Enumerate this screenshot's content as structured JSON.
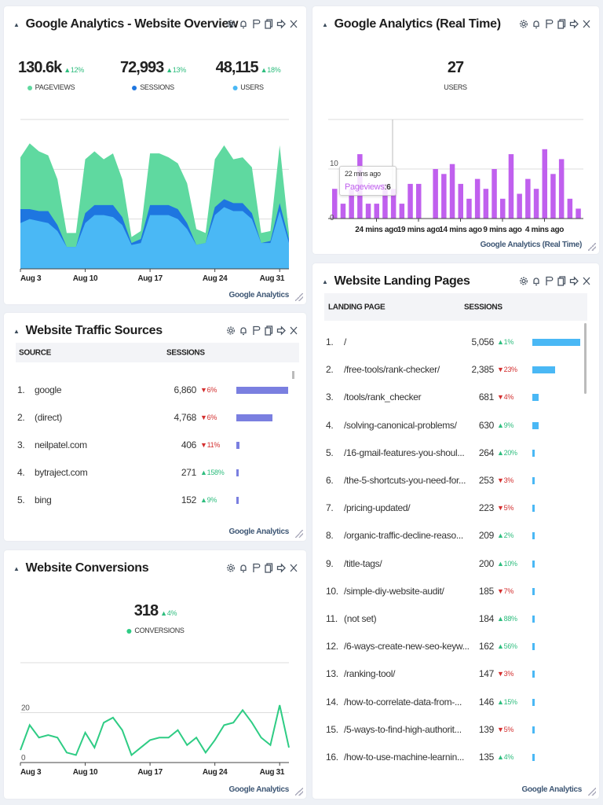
{
  "colors": {
    "pageviews": "#5fd9a0",
    "sessions": "#1e76e0",
    "users": "#4ab8f5",
    "realtime": "#c060ee",
    "conversions": "#2ecc84",
    "traffic_bar": "#7a7fe0",
    "landing_bar": "#4ab8f5",
    "up": "#2ebd7e",
    "down": "#d32f2f"
  },
  "toolbar_icons": [
    "gear-icon",
    "bell-icon",
    "flag-icon",
    "copy-icon",
    "share-icon",
    "close-icon"
  ],
  "overview": {
    "title": "Google Analytics - Website Overview",
    "footer": "Google Analytics",
    "stats": [
      {
        "value": "130.6k",
        "delta": "12%",
        "dir": "up",
        "label": "PAGEVIEWS",
        "color": "#5fd9a0"
      },
      {
        "value": "72,993",
        "delta": "13%",
        "dir": "up",
        "label": "SESSIONS",
        "color": "#1e76e0"
      },
      {
        "value": "48,115",
        "delta": "18%",
        "dir": "up",
        "label": "USERS",
        "color": "#4ab8f5"
      }
    ]
  },
  "realtime": {
    "title": "Google Analytics (Real Time)",
    "footer": "Google Analytics (Real Time)",
    "stat": {
      "value": "27",
      "label": "USERS"
    },
    "tooltip": {
      "time": "22 mins ago",
      "series": "Pageviews",
      "value": "6"
    }
  },
  "traffic": {
    "title": "Website Traffic Sources",
    "footer": "Google Analytics",
    "headers": {
      "source": "SOURCE",
      "sessions": "SESSIONS"
    },
    "rows": [
      {
        "rank": "1.",
        "name": "google",
        "value": "6,860",
        "n": 6860,
        "delta": "6%",
        "dir": "down"
      },
      {
        "rank": "2.",
        "name": "(direct)",
        "value": "4,768",
        "n": 4768,
        "delta": "6%",
        "dir": "down"
      },
      {
        "rank": "3.",
        "name": "neilpatel.com",
        "value": "406",
        "n": 406,
        "delta": "11%",
        "dir": "down"
      },
      {
        "rank": "4.",
        "name": "bytraject.com",
        "value": "271",
        "n": 271,
        "delta": "158%",
        "dir": "up"
      },
      {
        "rank": "5.",
        "name": "bing",
        "value": "152",
        "n": 152,
        "delta": "9%",
        "dir": "up"
      }
    ]
  },
  "conversions": {
    "title": "Website Conversions",
    "footer": "Google Analytics",
    "stat": {
      "value": "318",
      "delta": "4%",
      "dir": "up",
      "label": "CONVERSIONS"
    }
  },
  "landing": {
    "title": "Website Landing Pages",
    "footer": "Google Analytics",
    "headers": {
      "page": "LANDING PAGE",
      "sessions": "SESSIONS"
    },
    "rows": [
      {
        "rank": "1.",
        "name": "/",
        "value": "5,056",
        "n": 5056,
        "delta": "1%",
        "dir": "up"
      },
      {
        "rank": "2.",
        "name": "/free-tools/rank-checker/",
        "value": "2,385",
        "n": 2385,
        "delta": "23%",
        "dir": "down"
      },
      {
        "rank": "3.",
        "name": "/tools/rank_checker",
        "value": "681",
        "n": 681,
        "delta": "4%",
        "dir": "down"
      },
      {
        "rank": "4.",
        "name": "/solving-canonical-problems/",
        "value": "630",
        "n": 630,
        "delta": "9%",
        "dir": "up"
      },
      {
        "rank": "5.",
        "name": "/16-gmail-features-you-shoul...",
        "value": "264",
        "n": 264,
        "delta": "20%",
        "dir": "up"
      },
      {
        "rank": "6.",
        "name": "/the-5-shortcuts-you-need-for...",
        "value": "253",
        "n": 253,
        "delta": "3%",
        "dir": "down"
      },
      {
        "rank": "7.",
        "name": "/pricing-updated/",
        "value": "223",
        "n": 223,
        "delta": "5%",
        "dir": "down"
      },
      {
        "rank": "8.",
        "name": "/organic-traffic-decline-reaso...",
        "value": "209",
        "n": 209,
        "delta": "2%",
        "dir": "up"
      },
      {
        "rank": "9.",
        "name": "/title-tags/",
        "value": "200",
        "n": 200,
        "delta": "10%",
        "dir": "up"
      },
      {
        "rank": "10.",
        "name": "/simple-diy-website-audit/",
        "value": "185",
        "n": 185,
        "delta": "7%",
        "dir": "down"
      },
      {
        "rank": "11.",
        "name": "(not set)",
        "value": "184",
        "n": 184,
        "delta": "88%",
        "dir": "up"
      },
      {
        "rank": "12.",
        "name": "/6-ways-create-new-seo-keyw...",
        "value": "162",
        "n": 162,
        "delta": "56%",
        "dir": "up"
      },
      {
        "rank": "13.",
        "name": "/ranking-tool/",
        "value": "147",
        "n": 147,
        "delta": "3%",
        "dir": "down"
      },
      {
        "rank": "14.",
        "name": "/how-to-correlate-data-from-...",
        "value": "146",
        "n": 146,
        "delta": "15%",
        "dir": "up"
      },
      {
        "rank": "15.",
        "name": "/5-ways-to-find-high-authorit...",
        "value": "139",
        "n": 139,
        "delta": "5%",
        "dir": "down"
      },
      {
        "rank": "16.",
        "name": "/how-to-use-machine-learnin...",
        "value": "135",
        "n": 135,
        "delta": "4%",
        "dir": "up"
      }
    ]
  },
  "chart_data": [
    {
      "type": "area",
      "x_start": "Aug 3",
      "x_end": "Sep 1",
      "xticks": [
        "Aug 3",
        "Aug 10",
        "Aug 17",
        "Aug 24",
        "Aug 31"
      ],
      "yticks": [
        "0k",
        "2.5k",
        "5k"
      ],
      "ylim": [
        0,
        7.5
      ],
      "yunit": "k",
      "grid": true,
      "series": [
        {
          "name": "PAGEVIEWS",
          "values": [
            5.6,
            6.3,
            5.9,
            5.7,
            4.5,
            1.8,
            1.8,
            5.5,
            5.9,
            5.5,
            5.8,
            4.5,
            1.6,
            1.9,
            5.8,
            5.8,
            5.6,
            5.3,
            4.3,
            2.0,
            1.8,
            5.5,
            6.2,
            5.5,
            5.6,
            5.1,
            1.8,
            1.9,
            6.2,
            1.8
          ]
        },
        {
          "name": "SESSIONS",
          "values": [
            3.0,
            3.0,
            2.9,
            2.9,
            2.2,
            1.1,
            1.1,
            2.8,
            3.2,
            3.2,
            3.2,
            2.6,
            1.3,
            1.5,
            3.2,
            3.2,
            3.2,
            3.0,
            2.3,
            1.2,
            1.3,
            3.1,
            3.5,
            3.3,
            3.3,
            2.8,
            1.3,
            1.4,
            3.3,
            1.5
          ]
        },
        {
          "name": "USERS",
          "values": [
            2.3,
            2.5,
            2.4,
            2.3,
            1.9,
            1.1,
            1.1,
            2.3,
            2.7,
            2.7,
            2.6,
            2.2,
            1.2,
            1.3,
            2.7,
            2.7,
            2.7,
            2.5,
            2.0,
            1.2,
            1.3,
            2.7,
            3.1,
            2.9,
            2.9,
            2.5,
            1.3,
            1.3,
            2.9,
            1.3
          ]
        }
      ]
    },
    {
      "type": "bar",
      "xticks": [
        "24 mins ago",
        "19 mins ago",
        "14 mins ago",
        "9 mins ago",
        "4 mins ago"
      ],
      "yticks": [
        "0",
        "10"
      ],
      "ylim": [
        0,
        20
      ],
      "grid": true,
      "categories_mins_ago": [
        29,
        28,
        27,
        26,
        25,
        24,
        23,
        22,
        21,
        20,
        19,
        18,
        17,
        16,
        15,
        14,
        13,
        12,
        11,
        10,
        9,
        8,
        7,
        6,
        5,
        4,
        3,
        2,
        1,
        0
      ],
      "series": [
        {
          "name": "Pageviews",
          "values": [
            6,
            3,
            6,
            13,
            3,
            3,
            7,
            6,
            3,
            7,
            7,
            0,
            10,
            9,
            11,
            7,
            4,
            8,
            6,
            10,
            4,
            13,
            5,
            8,
            6,
            14,
            9,
            12,
            4,
            2
          ]
        }
      ]
    },
    {
      "type": "line",
      "x_start": "Aug 3",
      "x_end": "Sep 1",
      "xticks": [
        "Aug 3",
        "Aug 10",
        "Aug 17",
        "Aug 24",
        "Aug 31"
      ],
      "yticks": [
        "0",
        "20"
      ],
      "ylim": [
        0,
        40
      ],
      "grid": true,
      "series": [
        {
          "name": "CONVERSIONS",
          "values": [
            5,
            15,
            10,
            11,
            10,
            4,
            3,
            12,
            6,
            16,
            18,
            13,
            3,
            6,
            9,
            10,
            10,
            13,
            7,
            10,
            4,
            9,
            15,
            16,
            21,
            16,
            10,
            7,
            23,
            6
          ]
        }
      ]
    }
  ]
}
